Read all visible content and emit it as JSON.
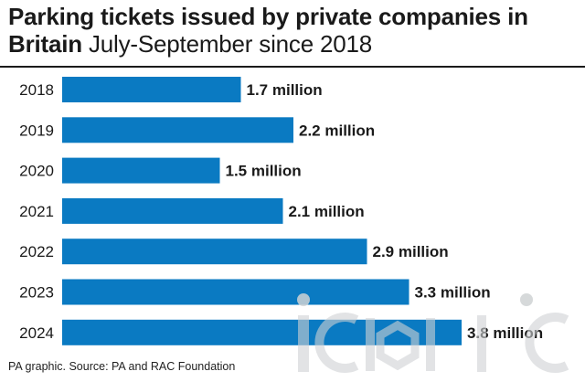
{
  "header": {
    "title_bold": "Parking tickets issued by private companies in Britain",
    "title_light": "July-September since 2018"
  },
  "chart_data": {
    "type": "bar",
    "orientation": "horizontal",
    "title": "Parking tickets issued by private companies in Britain July-September since 2018",
    "categories": [
      "2018",
      "2019",
      "2020",
      "2021",
      "2022",
      "2023",
      "2024"
    ],
    "values": [
      1.7,
      2.2,
      1.5,
      2.1,
      2.9,
      3.3,
      3.8
    ],
    "value_labels": [
      "1.7 million",
      "2.2 million",
      "1.5 million",
      "2.1 million",
      "2.9 million",
      "3.3 million",
      "3.8 million"
    ],
    "xlim": [
      0,
      3.8
    ],
    "grid": false,
    "bar_color": "#0a7ac2"
  },
  "footer": {
    "source": "PA graphic. Source: PA and RAC Foundation"
  },
  "watermark": {
    "text": "iconic",
    "color": "#cfd2d4"
  }
}
